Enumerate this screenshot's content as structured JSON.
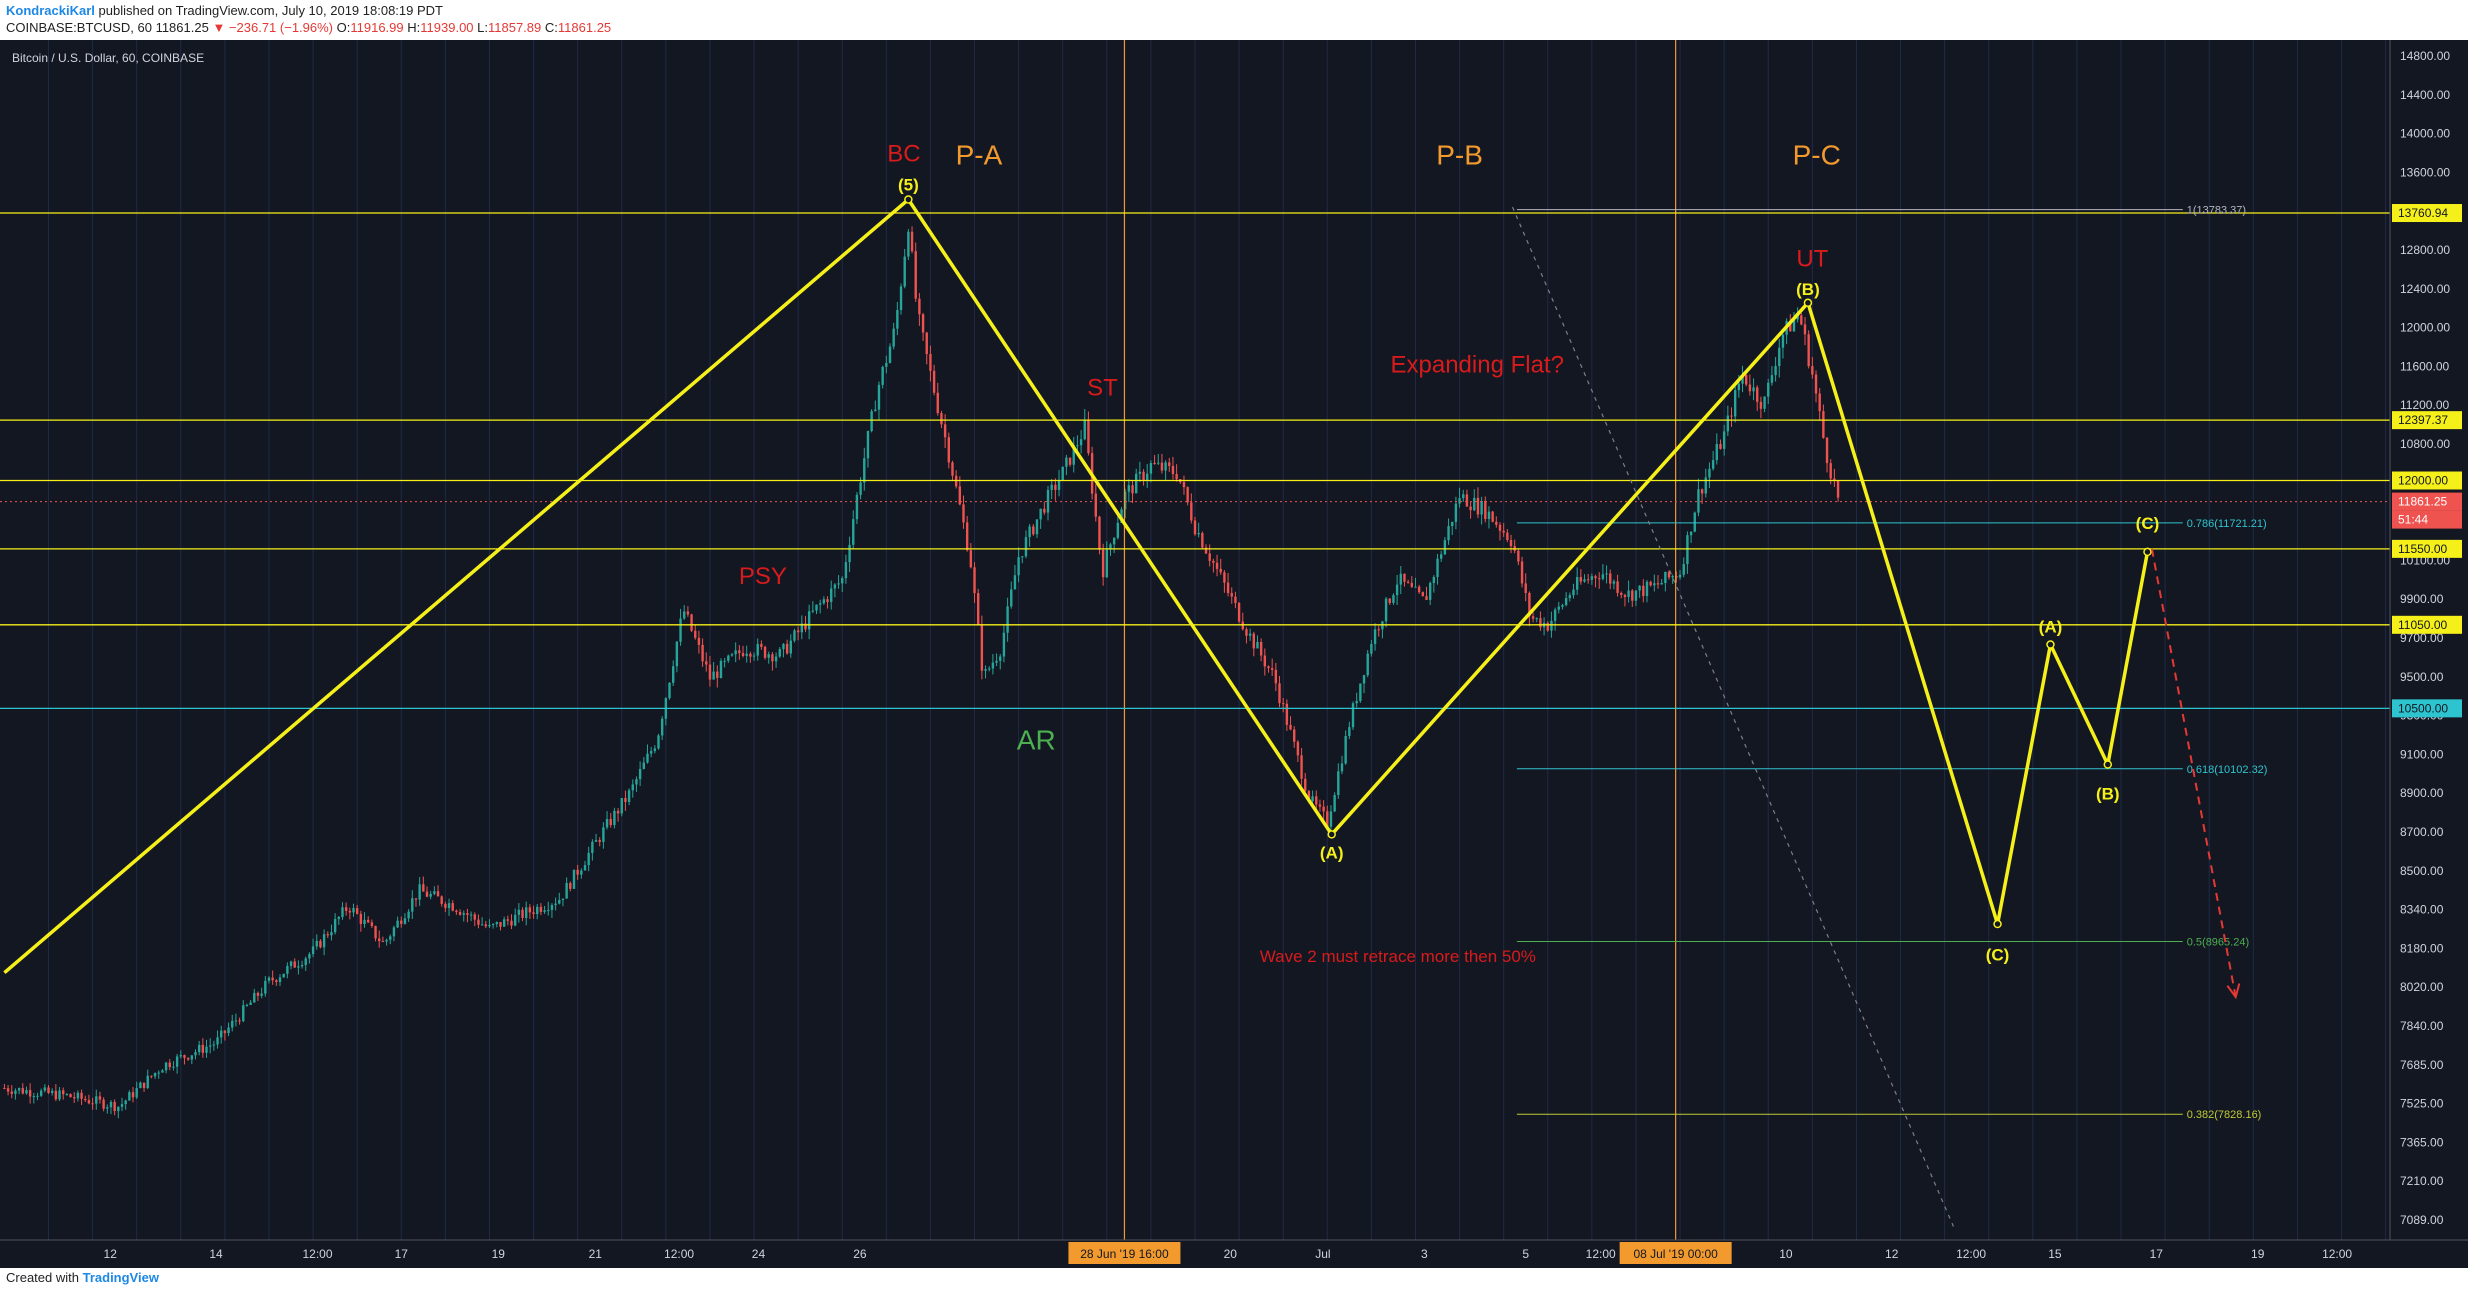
{
  "header": {
    "author": "KondrackiKarl",
    "published": "published on TradingView.com, July 10, 2019 18:08:19 PDT",
    "symbol": "COINBASE:BTCUSD, 60",
    "last": "11861.25",
    "change": "▼ −236.71 (−1.96%)",
    "ohlc": {
      "o_label": "O:",
      "o": "11916.99",
      "h_label": "H:",
      "h": "11939.00",
      "l_label": "L:",
      "l": "11857.89",
      "c_label": "C:",
      "c": "11861.25"
    }
  },
  "footer": {
    "created_with": "Created with",
    "brand": "TradingView"
  },
  "colors": {
    "background": "#131722",
    "bull": "#26a69a",
    "bear": "#ef5350",
    "wave": "#f6f01a",
    "hline": "#f6f01a",
    "cyan": "#2ec4cf",
    "red_label": "#d81b1b",
    "orange_label": "#f29a2e",
    "green_label": "#4caf50",
    "axis_text": "#d1d4dc"
  },
  "chart_data": {
    "type": "candlestick",
    "title": "Bitcoin / U.S. Dollar, 60, COINBASE",
    "ylim": [
      7000,
      14900
    ],
    "price_axis_ticks": [
      "14800.00",
      "14400.00",
      "14000.00",
      "13600.00",
      "13200.00",
      "12800.00",
      "12400.00",
      "12000.00",
      "11600.00",
      "11200.00",
      "10800.00",
      "10500.00",
      "10300.00",
      "10100.00",
      "9900.00",
      "9700.00",
      "9500.00",
      "9300.00",
      "9100.00",
      "8900.00",
      "8700.00",
      "8500.00",
      "8340.00",
      "8180.00",
      "8020.00",
      "7840.00",
      "7685.00",
      "7525.00",
      "7365.00",
      "7210.00",
      "7089.00"
    ],
    "time_axis_ticks": [
      {
        "label": "12",
        "t": 9.7
      },
      {
        "label": "14",
        "t": 10.9
      },
      {
        "label": "12:00",
        "t": 12.05
      },
      {
        "label": "17",
        "t": 13.0
      },
      {
        "label": "19",
        "t": 14.1
      },
      {
        "label": "21",
        "t": 15.2
      },
      {
        "label": "12:00",
        "t": 16.15
      },
      {
        "label": "24",
        "t": 17.05
      },
      {
        "label": "26",
        "t": 18.2
      },
      {
        "label": "20",
        "t": 22.4
      },
      {
        "label": "Jul",
        "t": 23.45
      },
      {
        "label": "3",
        "t": 24.6
      },
      {
        "label": "5",
        "t": 25.75
      },
      {
        "label": "12:00",
        "t": 26.6
      },
      {
        "label": "10",
        "t": 28.7
      },
      {
        "label": "12",
        "t": 29.9
      },
      {
        "label": "12:00",
        "t": 30.8
      },
      {
        "label": "15",
        "t": 31.75
      },
      {
        "label": "17",
        "t": 32.9
      },
      {
        "label": "19",
        "t": 34.05
      },
      {
        "label": "12:00",
        "t": 34.95
      }
    ],
    "time_axis_badges": [
      {
        "label": "28 Jun '19   16:00",
        "t": 21.2
      },
      {
        "label": "08 Jul '19   00:00",
        "t": 27.45
      }
    ],
    "price_path": [
      {
        "t": 8.5,
        "p": 8000
      },
      {
        "t": 9.2,
        "p": 7950
      },
      {
        "t": 9.8,
        "p": 7880
      },
      {
        "t": 10.3,
        "p": 8150
      },
      {
        "t": 10.9,
        "p": 8300
      },
      {
        "t": 11.5,
        "p": 8700
      },
      {
        "t": 12.0,
        "p": 8900
      },
      {
        "t": 12.4,
        "p": 9200
      },
      {
        "t": 12.8,
        "p": 8950
      },
      {
        "t": 13.2,
        "p": 9300
      },
      {
        "t": 13.6,
        "p": 9200
      },
      {
        "t": 14.0,
        "p": 9050
      },
      {
        "t": 14.4,
        "p": 9150
      },
      {
        "t": 14.8,
        "p": 9250
      },
      {
        "t": 15.3,
        "p": 9700
      },
      {
        "t": 15.6,
        "p": 9950
      },
      {
        "t": 15.9,
        "p": 10300
      },
      {
        "t": 16.2,
        "p": 11150
      },
      {
        "t": 16.5,
        "p": 10700
      },
      {
        "t": 16.9,
        "p": 10900
      },
      {
        "t": 17.3,
        "p": 10850
      },
      {
        "t": 17.7,
        "p": 11150
      },
      {
        "t": 18.0,
        "p": 11350
      },
      {
        "t": 18.2,
        "p": 12000
      },
      {
        "t": 18.4,
        "p": 12600
      },
      {
        "t": 18.6,
        "p": 13000
      },
      {
        "t": 18.75,
        "p": 13700
      },
      {
        "t": 18.85,
        "p": 13100
      },
      {
        "t": 19.0,
        "p": 12700
      },
      {
        "t": 19.2,
        "p": 12200
      },
      {
        "t": 19.45,
        "p": 11500
      },
      {
        "t": 19.6,
        "p": 10700
      },
      {
        "t": 19.8,
        "p": 10900
      },
      {
        "t": 20.0,
        "p": 11500
      },
      {
        "t": 20.3,
        "p": 11850
      },
      {
        "t": 20.5,
        "p": 12050
      },
      {
        "t": 20.75,
        "p": 12350
      },
      {
        "t": 20.95,
        "p": 11400
      },
      {
        "t": 21.2,
        "p": 11900
      },
      {
        "t": 21.5,
        "p": 12100
      },
      {
        "t": 21.8,
        "p": 12050
      },
      {
        "t": 22.0,
        "p": 11700
      },
      {
        "t": 22.3,
        "p": 11350
      },
      {
        "t": 22.6,
        "p": 11000
      },
      {
        "t": 22.9,
        "p": 10700
      },
      {
        "t": 23.1,
        "p": 10300
      },
      {
        "t": 23.3,
        "p": 9900
      },
      {
        "t": 23.5,
        "p": 9750
      },
      {
        "t": 23.75,
        "p": 10400
      },
      {
        "t": 24.0,
        "p": 10950
      },
      {
        "t": 24.3,
        "p": 11350
      },
      {
        "t": 24.6,
        "p": 11200
      },
      {
        "t": 24.8,
        "p": 11550
      },
      {
        "t": 25.0,
        "p": 11900
      },
      {
        "t": 25.3,
        "p": 11800
      },
      {
        "t": 25.6,
        "p": 11600
      },
      {
        "t": 25.8,
        "p": 11100
      },
      {
        "t": 26.0,
        "p": 11050
      },
      {
        "t": 26.3,
        "p": 11300
      },
      {
        "t": 26.6,
        "p": 11400
      },
      {
        "t": 26.9,
        "p": 11250
      },
      {
        "t": 27.2,
        "p": 11300
      },
      {
        "t": 27.5,
        "p": 11400
      },
      {
        "t": 27.7,
        "p": 11900
      },
      {
        "t": 28.0,
        "p": 12300
      },
      {
        "t": 28.2,
        "p": 12700
      },
      {
        "t": 28.45,
        "p": 12500
      },
      {
        "t": 28.65,
        "p": 12950
      },
      {
        "t": 28.85,
        "p": 13100
      },
      {
        "t": 29.0,
        "p": 12700
      },
      {
        "t": 29.15,
        "p": 12200
      },
      {
        "t": 29.3,
        "p": 11861
      }
    ],
    "horizontal_levels": [
      {
        "price": 13760.94,
        "color": "#f6f01a",
        "label": "13760.94"
      },
      {
        "price": 12397.37,
        "color": "#f6f01a",
        "label": "12397.37"
      },
      {
        "price": 12000.0,
        "color": "#f6f01a",
        "label": "12000.00"
      },
      {
        "price": 11550.0,
        "color": "#f6f01a",
        "label": "11550.00"
      },
      {
        "price": 11050.0,
        "color": "#f6f01a",
        "label": "11050.00"
      },
      {
        "price": 10500.0,
        "color": "#2ec4cf",
        "label": "10500.00"
      }
    ],
    "current_price": {
      "price": 11861.25,
      "label": "11861.25",
      "countdown": "51:44"
    },
    "fib_levels": [
      {
        "ratio_label": "1(13783.37)",
        "price": 13783.37,
        "color": "#b2b5be"
      },
      {
        "ratio_label": "0.786(11721.21)",
        "price": 11721.21,
        "color": "#2ec4cf"
      },
      {
        "ratio_label": "0.618(10102.32)",
        "price": 10102.32,
        "color": "#2ec4cf"
      },
      {
        "ratio_label": "0.5(8965.24)",
        "price": 8965.24,
        "color": "#4caf50"
      },
      {
        "ratio_label": "0.382(7828.16)",
        "price": 7828.16,
        "color": "#c0ca33"
      }
    ],
    "vertical_markers": [
      {
        "t": 21.2
      },
      {
        "t": 27.45
      }
    ],
    "wave_path": [
      {
        "t": 8.5,
        "p": 8760
      },
      {
        "t": 18.75,
        "p": 13850
      },
      {
        "t": 23.55,
        "p": 9670
      },
      {
        "t": 28.95,
        "p": 13170
      },
      {
        "t": 31.1,
        "p": 9080
      },
      {
        "t": 31.7,
        "p": 10920
      },
      {
        "t": 32.35,
        "p": 10130
      },
      {
        "t": 32.8,
        "p": 11530
      }
    ],
    "projection_arrow": {
      "from": {
        "t": 32.85,
        "p": 11550
      },
      "to": {
        "t": 33.8,
        "p": 8600
      },
      "color": "#e53935"
    },
    "dotted_trend": {
      "from": {
        "t": 25.6,
        "p": 13800
      },
      "to": {
        "t": 30.6,
        "p": 7089
      },
      "color": "#7c7f89"
    },
    "wave_labels": [
      {
        "text": "(5)",
        "t": 18.75,
        "p": 13950,
        "kind": "node"
      },
      {
        "text": "(A)",
        "t": 23.55,
        "p": 9550,
        "kind": "node"
      },
      {
        "text": "(B)",
        "t": 28.95,
        "p": 13260,
        "kind": "node"
      },
      {
        "text": "(C)",
        "t": 31.1,
        "p": 8880,
        "kind": "node"
      },
      {
        "text": "(A)",
        "t": 31.7,
        "p": 11040,
        "kind": "node"
      },
      {
        "text": "(B)",
        "t": 32.35,
        "p": 9940,
        "kind": "node"
      },
      {
        "text": "(C)",
        "t": 32.8,
        "p": 11720,
        "kind": "node"
      }
    ],
    "annotations": [
      {
        "text": "BC",
        "t": 18.7,
        "p": 14100,
        "color": "#d81b1b",
        "size": 24
      },
      {
        "text": "P-A",
        "t": 19.55,
        "p": 14080,
        "color": "#f29a2e",
        "size": 28
      },
      {
        "text": "P-B",
        "t": 25.0,
        "p": 14080,
        "color": "#f29a2e",
        "size": 28
      },
      {
        "text": "P-C",
        "t": 29.05,
        "p": 14080,
        "color": "#f29a2e",
        "size": 28
      },
      {
        "text": "UT",
        "t": 29.0,
        "p": 13410,
        "color": "#d81b1b",
        "size": 24
      },
      {
        "text": "ST",
        "t": 20.95,
        "p": 12560,
        "color": "#d81b1b",
        "size": 24
      },
      {
        "text": "Expanding Flat?",
        "t": 25.2,
        "p": 12710,
        "color": "#d81b1b",
        "size": 24
      },
      {
        "text": "PSY",
        "t": 17.1,
        "p": 11320,
        "color": "#d81b1b",
        "size": 24
      },
      {
        "text": "AR",
        "t": 20.2,
        "p": 10230,
        "color": "#4caf50",
        "size": 28
      },
      {
        "text": "Wave 2 must retrace more then 50%",
        "t": 24.3,
        "p": 8830,
        "color": "#d81b1b",
        "size": 17
      }
    ]
  }
}
